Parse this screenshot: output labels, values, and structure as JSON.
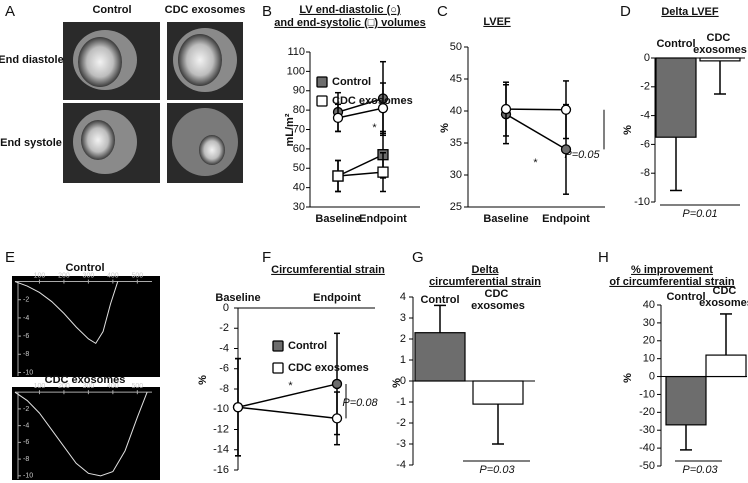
{
  "panel_a": {
    "label": "A",
    "columns": [
      "Control",
      "CDC exosomes"
    ],
    "rows": [
      "End diastole",
      "End systole"
    ]
  },
  "chart_data": [
    {
      "label": "B",
      "type": "line",
      "title": [
        "LV end-diastolic (○)",
        "and end-systolic (□) volumes"
      ],
      "y_label": "mL/m²",
      "categories": [
        "Baseline",
        "Endpoint"
      ],
      "series": [
        {
          "name": "Control",
          "color": "#6d6d6d",
          "values": [
            79,
            86
          ],
          "errors": [
            10,
            19
          ],
          "esv": [
            46,
            57
          ],
          "esv_errors": [
            8,
            12
          ]
        },
        {
          "name": "CDC exosomes",
          "color": "#ffffff",
          "values": [
            76,
            81
          ],
          "errors": [
            7,
            13
          ],
          "esv": [
            46,
            48
          ],
          "esv_errors": [
            8,
            10
          ]
        }
      ],
      "ylim": [
        30,
        110
      ],
      "yticks": [
        30,
        40,
        50,
        60,
        70,
        80,
        90,
        100,
        110
      ],
      "annotations": [
        "*"
      ]
    },
    {
      "label": "C",
      "type": "line",
      "title": [
        "LVEF"
      ],
      "y_label": "%",
      "categories": [
        "Baseline",
        "Endpoint"
      ],
      "series": [
        {
          "color": "#6d6d6d",
          "values": [
            39.5,
            34
          ],
          "errors": [
            4.6,
            7
          ]
        },
        {
          "color": "#ffffff",
          "values": [
            40.3,
            40.2
          ],
          "errors": [
            4.2,
            4.5
          ]
        }
      ],
      "ylim": [
        25,
        50
      ],
      "yticks": [
        25,
        30,
        35,
        40,
        45,
        50
      ],
      "annotations": [
        "*",
        "P=0.05"
      ]
    },
    {
      "label": "D",
      "type": "bar",
      "title": [
        "Delta LVEF"
      ],
      "y_label": "%",
      "categories": [
        "Control",
        "CDC exosomes"
      ],
      "values": [
        -5.5,
        -0.2
      ],
      "errors": [
        3.7,
        2.3
      ],
      "colors": [
        "#6d6d6d",
        "#ffffff"
      ],
      "ylim": [
        -10,
        0
      ],
      "yticks": [
        -10,
        -8,
        -6,
        -4,
        -2,
        0
      ],
      "annotations": [
        "P=0.01"
      ]
    },
    {
      "label": "E",
      "type": "trace",
      "color": "#e0e0e0",
      "plots": [
        {
          "title": "Control",
          "x": [
            0,
            50,
            100,
            150,
            200,
            250,
            300,
            330,
            360,
            390,
            420
          ],
          "values": [
            0,
            -0.5,
            -1.2,
            -2.2,
            -3.5,
            -5,
            -6.3,
            -6.8,
            -5.5,
            -2.5,
            0
          ],
          "xlim": [
            0,
            560
          ],
          "ylim": [
            -10.5,
            0.5
          ],
          "xticks": [
            100,
            200,
            300,
            400,
            500
          ],
          "yticks": [
            -2,
            -4,
            -6,
            -8,
            -10
          ]
        },
        {
          "title": "CDC exosomes",
          "x": [
            0,
            50,
            100,
            150,
            200,
            250,
            300,
            350,
            400,
            450,
            500,
            540
          ],
          "values": [
            0,
            -1,
            -2.5,
            -4.5,
            -6.5,
            -8.5,
            -9.7,
            -10,
            -9.5,
            -7,
            -3,
            0
          ],
          "xlim": [
            0,
            560
          ],
          "ylim": [
            -10.5,
            0.5
          ],
          "xticks": [
            100,
            200,
            300,
            400,
            500
          ],
          "yticks": [
            -2,
            -4,
            -6,
            -8,
            -10
          ]
        }
      ]
    },
    {
      "label": "F",
      "type": "line",
      "title": [
        "Circumferential strain"
      ],
      "y_label": "%",
      "categories": [
        "Baseline",
        "Endpoint"
      ],
      "series": [
        {
          "name": "Control",
          "color": "#6d6d6d",
          "values": [
            -9.8,
            -7.5
          ],
          "errors": [
            4.8,
            5
          ]
        },
        {
          "name": "CDC exosomes",
          "color": "#ffffff",
          "values": [
            -9.8,
            -10.9
          ],
          "errors": [
            4.8,
            2.6
          ]
        }
      ],
      "ylim": [
        -16,
        0
      ],
      "yticks": [
        -16,
        -14,
        -12,
        -10,
        -8,
        -6,
        -4,
        -2,
        0
      ],
      "annotations": [
        "*",
        "P=0.08"
      ]
    },
    {
      "label": "G",
      "type": "bar",
      "title": [
        "Delta",
        "circumferential strain"
      ],
      "y_label": "%",
      "categories": [
        "Control",
        "CDC exosomes"
      ],
      "values": [
        2.3,
        -1.1
      ],
      "errors": [
        1.3,
        1.9
      ],
      "colors": [
        "#6d6d6d",
        "#ffffff"
      ],
      "ylim": [
        -4,
        4
      ],
      "yticks": [
        -4,
        -3,
        -2,
        -1,
        0,
        1,
        2,
        3,
        4
      ],
      "annotations": [
        "P=0.03"
      ]
    },
    {
      "label": "H",
      "type": "bar",
      "title": [
        "% improvement",
        "of circumferential strain"
      ],
      "y_label": "%",
      "categories": [
        "Control",
        "CDC exosomes"
      ],
      "values": [
        -27,
        12
      ],
      "errors": [
        14,
        23
      ],
      "colors": [
        "#6d6d6d",
        "#ffffff"
      ],
      "ylim": [
        -50,
        40
      ],
      "yticks": [
        -50,
        -40,
        -30,
        -20,
        -10,
        0,
        10,
        20,
        30,
        40
      ],
      "annotations": [
        "P=0.03"
      ]
    }
  ]
}
